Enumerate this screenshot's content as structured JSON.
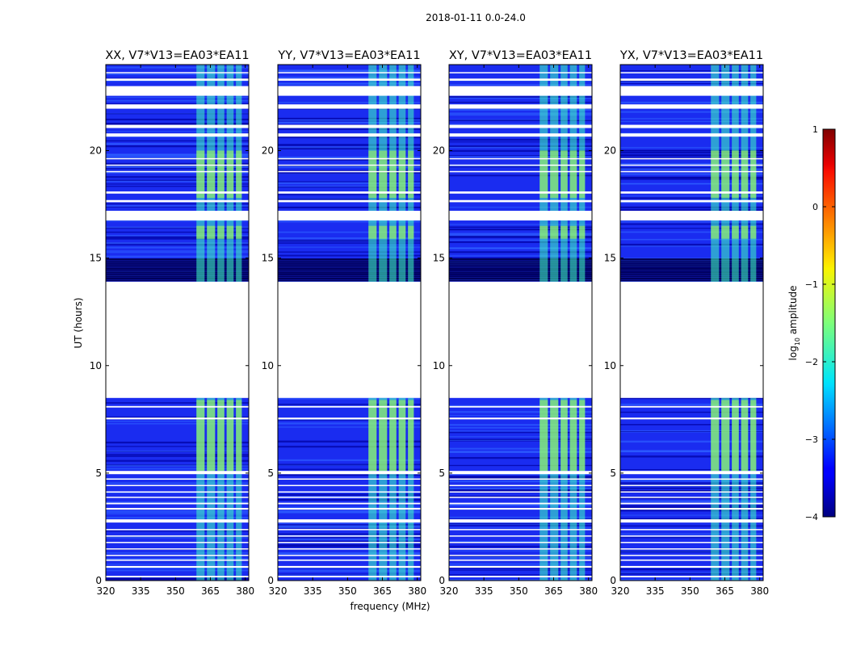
{
  "chart_data": {
    "type": "heatmap",
    "suptitle": "2018-01-11 0.0-24.0",
    "panels": [
      {
        "title": "XX, V7*V13=EA03*EA11",
        "pol": "XX"
      },
      {
        "title": "YY, V7*V13=EA03*EA11",
        "pol": "YY"
      },
      {
        "title": "XY, V7*V13=EA03*EA11",
        "pol": "XY"
      },
      {
        "title": "YX, V7*V13=EA03*EA11",
        "pol": "YX"
      }
    ],
    "xlabel": "frequency (MHz)",
    "ylabel": "UT (hours)",
    "xlim": [
      320,
      381.5
    ],
    "ylim": [
      0,
      24
    ],
    "xticks": [
      320,
      335,
      350,
      365,
      380
    ],
    "yticks": [
      0,
      5,
      10,
      15,
      20
    ],
    "colorbar": {
      "label_main": "log",
      "label_sub": "10",
      "label_rest": " amplitude",
      "range": [
        -4,
        1
      ],
      "ticks": [
        -4,
        -3,
        -2,
        -1,
        0,
        1
      ],
      "tick_labels": [
        "−4",
        "−3",
        "−2",
        "−1",
        "0",
        "1"
      ]
    },
    "rfi_band_mhz": [
      359,
      378.5
    ],
    "data_gap_hours": [
      8.5,
      13.9
    ],
    "colors": {
      "strong": "#0000a0",
      "background": "#1a2cf0",
      "rfi": "#40ffbf",
      "bright": "#b3ff4c"
    }
  }
}
